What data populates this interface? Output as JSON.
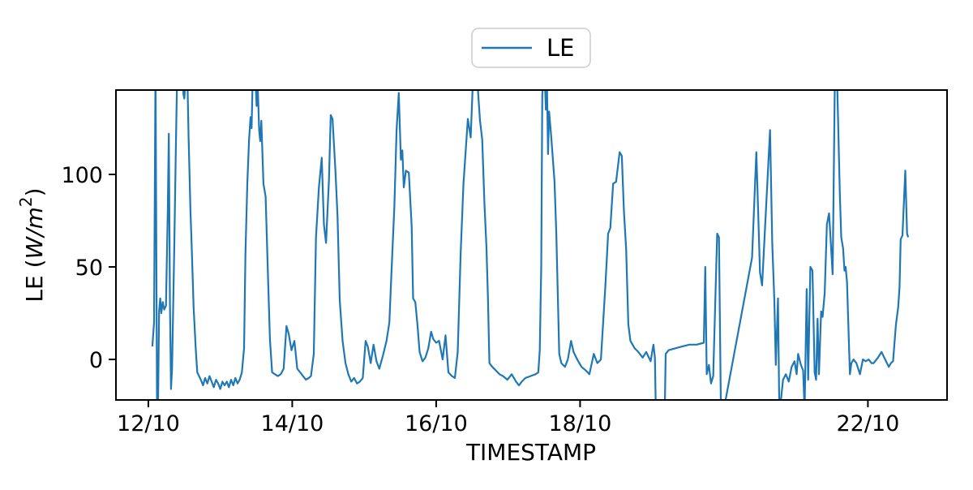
{
  "figure": {
    "background": "#ffffff"
  },
  "legend": {
    "label": "LE",
    "line_color": "#1f77b4",
    "border_color": "#cccccc",
    "position": "top-center-outside"
  },
  "axes": {
    "xlabel": "TIMESTAMP",
    "ylabel_text": "LE (W/m2)",
    "ylabel_prefix": "LE (",
    "ylabel_math": "W/m",
    "ylabel_sup": "2",
    "ylabel_suffix": ")"
  },
  "chart_data": {
    "type": "line",
    "title": "",
    "xlabel": "TIMESTAMP",
    "ylabel": "LE (W/m^2)",
    "grid": false,
    "x_encoding": "days after the 12/10 x tick",
    "xlim": [
      -0.45,
      11.1
    ],
    "ylim": [
      -21.9,
      145.6
    ],
    "xticks": [
      {
        "pos": 0,
        "label": "12/10"
      },
      {
        "pos": 2,
        "label": "14/10"
      },
      {
        "pos": 4,
        "label": "16/10"
      },
      {
        "pos": 6,
        "label": "18/10"
      },
      {
        "pos": 10,
        "label": "22/10"
      }
    ],
    "yticks": [
      {
        "pos": 0,
        "label": "0"
      },
      {
        "pos": 50,
        "label": "50"
      },
      {
        "pos": 100,
        "label": "100"
      }
    ],
    "legend_entries": [
      "LE"
    ],
    "series": [
      {
        "name": "LE",
        "color": "#1f77b4",
        "points": [
          [
            0.056,
            7
          ],
          [
            0.08,
            20
          ],
          [
            0.1,
            160
          ],
          [
            0.125,
            -60
          ],
          [
            0.15,
            26
          ],
          [
            0.165,
            33
          ],
          [
            0.18,
            25
          ],
          [
            0.2,
            31
          ],
          [
            0.22,
            27
          ],
          [
            0.245,
            29
          ],
          [
            0.27,
            80
          ],
          [
            0.285,
            122
          ],
          [
            0.3,
            30
          ],
          [
            0.315,
            -16
          ],
          [
            0.33,
            -5
          ],
          [
            0.36,
            60
          ],
          [
            0.385,
            120
          ],
          [
            0.4,
            152
          ],
          [
            0.43,
            150
          ],
          [
            0.46,
            155
          ],
          [
            0.49,
            143
          ],
          [
            0.5,
            141
          ],
          [
            0.52,
            152
          ],
          [
            0.545,
            148
          ],
          [
            0.56,
            120
          ],
          [
            0.585,
            80
          ],
          [
            0.6,
            64
          ],
          [
            0.63,
            28
          ],
          [
            0.66,
            5
          ],
          [
            0.68,
            -7
          ],
          [
            0.73,
            -11
          ],
          [
            0.76,
            -14
          ],
          [
            0.79,
            -10
          ],
          [
            0.82,
            -13
          ],
          [
            0.85,
            -9
          ],
          [
            0.88,
            -12
          ],
          [
            0.91,
            -15
          ],
          [
            0.94,
            -11
          ],
          [
            0.97,
            -13
          ],
          [
            1.0,
            -16
          ],
          [
            1.03,
            -12
          ],
          [
            1.06,
            -14
          ],
          [
            1.09,
            -12
          ],
          [
            1.12,
            -15
          ],
          [
            1.15,
            -11
          ],
          [
            1.18,
            -14
          ],
          [
            1.21,
            -10
          ],
          [
            1.24,
            -13
          ],
          [
            1.27,
            -11
          ],
          [
            1.3,
            -7
          ],
          [
            1.33,
            6
          ],
          [
            1.35,
            57
          ],
          [
            1.375,
            95
          ],
          [
            1.4,
            119
          ],
          [
            1.42,
            131
          ],
          [
            1.435,
            125
          ],
          [
            1.45,
            152
          ],
          [
            1.47,
            155
          ],
          [
            1.49,
            150
          ],
          [
            1.505,
            137
          ],
          [
            1.52,
            149
          ],
          [
            1.54,
            124
          ],
          [
            1.555,
            118
          ],
          [
            1.57,
            129
          ],
          [
            1.585,
            112
          ],
          [
            1.6,
            95
          ],
          [
            1.63,
            88
          ],
          [
            1.66,
            48
          ],
          [
            1.69,
            11
          ],
          [
            1.72,
            -7
          ],
          [
            1.76,
            -8
          ],
          [
            1.8,
            -9
          ],
          [
            1.84,
            -8
          ],
          [
            1.88,
            -5
          ],
          [
            1.92,
            18
          ],
          [
            1.95,
            14
          ],
          [
            1.99,
            5
          ],
          [
            2.03,
            10
          ],
          [
            2.07,
            -5
          ],
          [
            2.11,
            -7
          ],
          [
            2.15,
            -9
          ],
          [
            2.19,
            -11
          ],
          [
            2.23,
            -10
          ],
          [
            2.26,
            -9
          ],
          [
            2.3,
            3
          ],
          [
            2.33,
            66
          ],
          [
            2.37,
            93
          ],
          [
            2.41,
            109
          ],
          [
            2.44,
            73
          ],
          [
            2.47,
            63
          ],
          [
            2.51,
            97
          ],
          [
            2.535,
            132
          ],
          [
            2.56,
            130
          ],
          [
            2.6,
            102
          ],
          [
            2.63,
            77
          ],
          [
            2.66,
            32
          ],
          [
            2.7,
            10
          ],
          [
            2.74,
            -2
          ],
          [
            2.78,
            -8
          ],
          [
            2.82,
            -12
          ],
          [
            2.86,
            -10
          ],
          [
            2.9,
            -13
          ],
          [
            2.94,
            -12
          ],
          [
            2.98,
            -10
          ],
          [
            3.02,
            10
          ],
          [
            3.05,
            7
          ],
          [
            3.09,
            -2
          ],
          [
            3.13,
            8
          ],
          [
            3.17,
            -1
          ],
          [
            3.21,
            -5
          ],
          [
            3.26,
            2
          ],
          [
            3.31,
            10
          ],
          [
            3.35,
            20
          ],
          [
            3.38,
            48
          ],
          [
            3.42,
            83
          ],
          [
            3.45,
            124
          ],
          [
            3.48,
            144
          ],
          [
            3.51,
            108
          ],
          [
            3.53,
            113
          ],
          [
            3.55,
            93
          ],
          [
            3.58,
            102
          ],
          [
            3.62,
            101
          ],
          [
            3.66,
            72
          ],
          [
            3.68,
            33
          ],
          [
            3.71,
            31
          ],
          [
            3.74,
            19
          ],
          [
            3.77,
            4
          ],
          [
            3.81,
            -1
          ],
          [
            3.85,
            1
          ],
          [
            3.89,
            6
          ],
          [
            3.93,
            15
          ],
          [
            3.96,
            11
          ],
          [
            4.0,
            9
          ],
          [
            4.04,
            10
          ],
          [
            4.09,
            0
          ],
          [
            4.13,
            13
          ],
          [
            4.17,
            -7
          ],
          [
            4.22,
            -9
          ],
          [
            4.26,
            -10
          ],
          [
            4.3,
            4
          ],
          [
            4.34,
            57
          ],
          [
            4.38,
            95
          ],
          [
            4.44,
            130
          ],
          [
            4.48,
            120
          ],
          [
            4.51,
            150
          ],
          [
            4.55,
            153
          ],
          [
            4.58,
            146
          ],
          [
            4.61,
            129
          ],
          [
            4.64,
            119
          ],
          [
            4.67,
            85
          ],
          [
            4.7,
            60
          ],
          [
            4.72,
            33
          ],
          [
            4.74,
            -2
          ],
          [
            4.78,
            -4
          ],
          [
            4.83,
            -6
          ],
          [
            4.88,
            -8
          ],
          [
            4.93,
            -9
          ],
          [
            4.99,
            -11
          ],
          [
            5.05,
            -8
          ],
          [
            5.11,
            -12
          ],
          [
            5.15,
            -14
          ],
          [
            5.19,
            -12
          ],
          [
            5.24,
            -10
          ],
          [
            5.31,
            -9
          ],
          [
            5.38,
            -8
          ],
          [
            5.42,
            -7
          ],
          [
            5.44,
            5
          ],
          [
            5.46,
            50
          ],
          [
            5.475,
            143
          ],
          [
            5.49,
            150
          ],
          [
            5.51,
            152
          ],
          [
            5.525,
            135
          ],
          [
            5.54,
            148
          ],
          [
            5.555,
            111
          ],
          [
            5.57,
            134
          ],
          [
            5.6,
            120
          ],
          [
            5.645,
            96
          ],
          [
            5.67,
            68
          ],
          [
            5.71,
            3
          ],
          [
            5.74,
            -2
          ],
          [
            5.79,
            -4
          ],
          [
            5.83,
            0
          ],
          [
            5.875,
            10
          ],
          [
            5.91,
            4
          ],
          [
            5.96,
            0
          ],
          [
            6.02,
            -4
          ],
          [
            6.08,
            -6
          ],
          [
            6.13,
            -8
          ],
          [
            6.19,
            3
          ],
          [
            6.24,
            -2
          ],
          [
            6.29,
            0
          ],
          [
            6.35,
            39
          ],
          [
            6.39,
            68
          ],
          [
            6.42,
            71
          ],
          [
            6.46,
            95
          ],
          [
            6.5,
            96
          ],
          [
            6.55,
            112
          ],
          [
            6.58,
            110
          ],
          [
            6.61,
            80
          ],
          [
            6.64,
            60
          ],
          [
            6.67,
            19
          ],
          [
            6.7,
            10
          ],
          [
            6.76,
            6
          ],
          [
            6.81,
            4
          ],
          [
            6.87,
            1
          ],
          [
            6.92,
            4
          ],
          [
            6.98,
            -1
          ],
          [
            7.02,
            8
          ],
          [
            7.04,
            1
          ],
          [
            7.06,
            -45
          ],
          [
            7.17,
            -45
          ],
          [
            7.19,
            3
          ],
          [
            7.23,
            5
          ],
          [
            7.32,
            6
          ],
          [
            7.42,
            7
          ],
          [
            7.52,
            8
          ],
          [
            7.62,
            8
          ],
          [
            7.72,
            9
          ],
          [
            7.74,
            50
          ],
          [
            7.76,
            -8
          ],
          [
            7.79,
            -3
          ],
          [
            7.82,
            -13
          ],
          [
            7.85,
            -9
          ],
          [
            7.905,
            68
          ],
          [
            7.93,
            66
          ],
          [
            7.96,
            -35
          ],
          [
            8.39,
            55
          ],
          [
            8.45,
            112
          ],
          [
            8.5,
            47
          ],
          [
            8.53,
            40
          ],
          [
            8.64,
            124
          ],
          [
            8.67,
            63
          ],
          [
            8.7,
            32
          ],
          [
            8.72,
            -3
          ],
          [
            8.75,
            33
          ],
          [
            8.77,
            -30
          ],
          [
            8.82,
            -11
          ],
          [
            8.86,
            -8
          ],
          [
            8.9,
            -12
          ],
          [
            8.94,
            -4
          ],
          [
            8.98,
            -1
          ],
          [
            9.01,
            -8
          ],
          [
            9.03,
            3
          ],
          [
            9.07,
            -3
          ],
          [
            9.1,
            -6
          ],
          [
            9.12,
            -28
          ],
          [
            9.15,
            38
          ],
          [
            9.17,
            -11
          ],
          [
            9.2,
            50
          ],
          [
            9.23,
            48
          ],
          [
            9.26,
            -7
          ],
          [
            9.28,
            -11
          ],
          [
            9.3,
            22
          ],
          [
            9.32,
            -8
          ],
          [
            9.35,
            26
          ],
          [
            9.37,
            23
          ],
          [
            9.4,
            36
          ],
          [
            9.43,
            73
          ],
          [
            9.46,
            79
          ],
          [
            9.51,
            46
          ],
          [
            9.54,
            150
          ],
          [
            9.57,
            155
          ],
          [
            9.61,
            89
          ],
          [
            9.63,
            66
          ],
          [
            9.655,
            60
          ],
          [
            9.675,
            48
          ],
          [
            9.69,
            50
          ],
          [
            9.71,
            42
          ],
          [
            9.735,
            10
          ],
          [
            9.75,
            -8
          ],
          [
            9.77,
            -2
          ],
          [
            9.8,
            0
          ],
          [
            9.84,
            -2
          ],
          [
            9.89,
            -8
          ],
          [
            9.93,
            0
          ],
          [
            9.97,
            -1
          ],
          [
            10.01,
            0
          ],
          [
            10.05,
            -2
          ],
          [
            10.08,
            -2
          ],
          [
            10.14,
            1
          ],
          [
            10.19,
            4
          ],
          [
            10.24,
            0
          ],
          [
            10.29,
            -4
          ],
          [
            10.32,
            -2
          ],
          [
            10.35,
            -1
          ],
          [
            10.39,
            19
          ],
          [
            10.42,
            28
          ],
          [
            10.44,
            39
          ],
          [
            10.455,
            65
          ],
          [
            10.48,
            67
          ],
          [
            10.52,
            102
          ],
          [
            10.545,
            68
          ],
          [
            10.56,
            66
          ]
        ]
      }
    ]
  }
}
